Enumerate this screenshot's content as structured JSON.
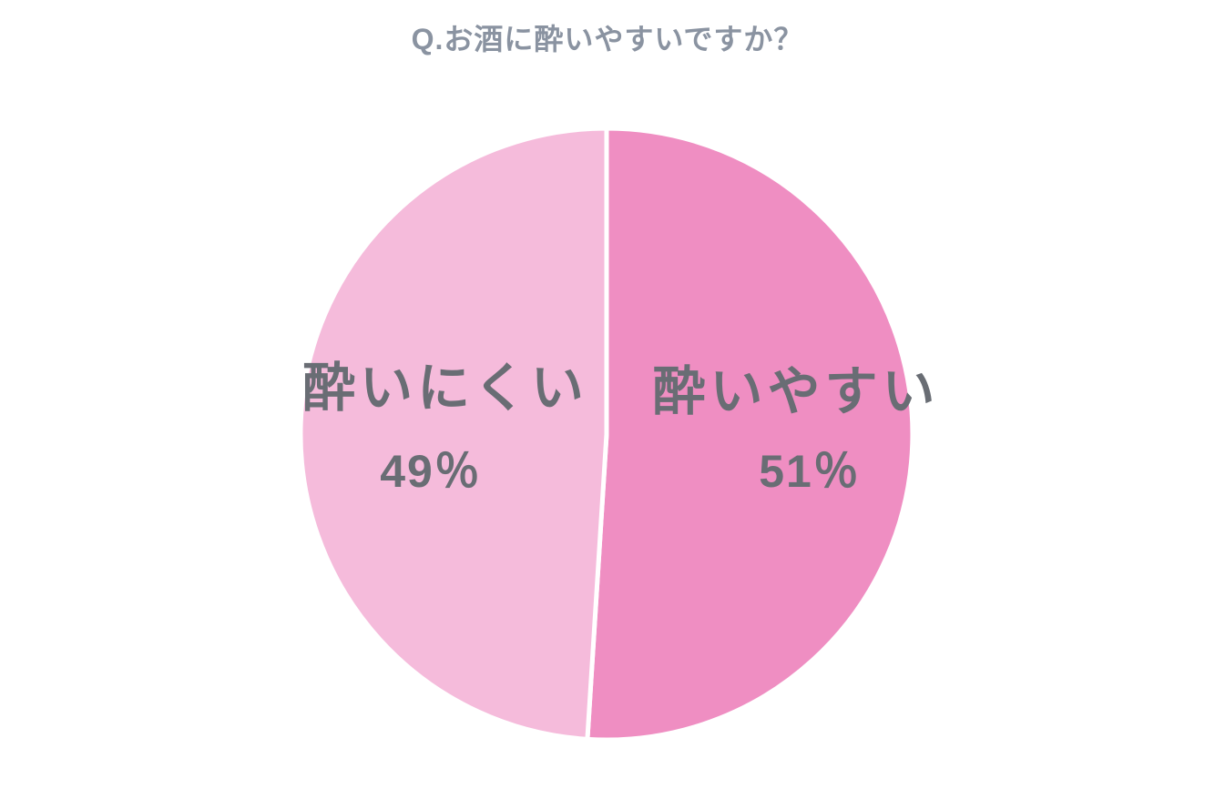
{
  "page": {
    "background": "#ffffff"
  },
  "chart_data": {
    "type": "pie",
    "title": "Q.お酒に酔いやすいですか？",
    "title_color": "#8a93a1",
    "label_color": "#696d74",
    "divider_color": "#ffffff",
    "divider_width": 5,
    "start_angle_deg": 0,
    "direction": "clockwise",
    "legend_position": "none",
    "labels_inside": true,
    "slices": [
      {
        "label": "酔いやすい",
        "value": 51,
        "percent_label": "51％",
        "color": "#ef8ec2"
      },
      {
        "label": "酔いにくい",
        "value": 49,
        "percent_label": "49％",
        "color": "#f5bbdb"
      }
    ]
  }
}
